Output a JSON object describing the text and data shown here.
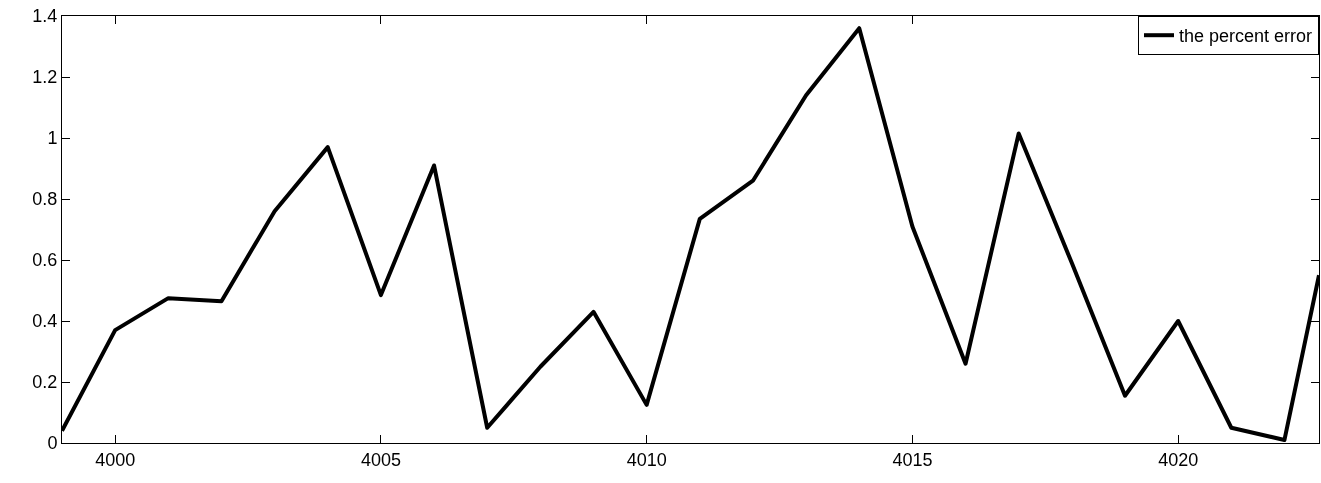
{
  "chart_data": {
    "type": "line",
    "x": [
      3999,
      4000,
      4001,
      4002,
      4003,
      4004,
      4005,
      4006,
      4007,
      4008,
      4009,
      4010,
      4011,
      4012,
      4013,
      4014,
      4015,
      4016,
      4017,
      4018,
      4019,
      4020,
      4021,
      4022,
      4022.65
    ],
    "series": [
      {
        "name": "the percent error",
        "color": "#000000",
        "values": [
          0.04,
          0.37,
          0.475,
          0.465,
          0.76,
          0.97,
          0.485,
          0.91,
          0.05,
          0.25,
          0.43,
          0.125,
          0.735,
          0.86,
          1.14,
          1.36,
          0.71,
          0.26,
          1.015,
          0.59,
          0.155,
          0.4,
          0.05,
          0.01,
          0.55
        ]
      }
    ],
    "xlim": [
      3999,
      4022.65
    ],
    "xticks": [
      4000,
      4005,
      4010,
      4015,
      4020
    ],
    "ylim": [
      0,
      1.4
    ],
    "yticks": [
      0,
      0.2,
      0.4,
      0.6,
      0.8,
      1,
      1.2,
      1.4
    ],
    "legend": "top right",
    "marker": "none",
    "line_style": "solid"
  }
}
